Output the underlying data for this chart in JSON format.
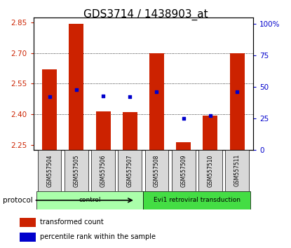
{
  "title": "GDS3714 / 1438903_at",
  "samples": [
    "GSM557504",
    "GSM557505",
    "GSM557506",
    "GSM557507",
    "GSM557508",
    "GSM557509",
    "GSM557510",
    "GSM557511"
  ],
  "transformed_count": [
    2.62,
    2.845,
    2.415,
    2.41,
    2.7,
    2.265,
    2.395,
    2.7
  ],
  "percentile_rank": [
    42,
    48,
    43,
    42,
    46,
    25,
    27,
    46
  ],
  "bar_bottom": 2.225,
  "ylim": [
    2.225,
    2.875
  ],
  "yticks": [
    2.25,
    2.4,
    2.55,
    2.7,
    2.85
  ],
  "right_yticks": [
    0,
    25,
    50,
    75,
    100
  ],
  "right_ylim": [
    0,
    105
  ],
  "bar_color": "#cc2200",
  "percentile_color": "#0000cc",
  "protocol_groups": [
    {
      "label": "control",
      "start": 0,
      "end": 4,
      "color": "#aaffaa"
    },
    {
      "label": "Evi1 retroviral transduction",
      "start": 4,
      "end": 8,
      "color": "#44dd44"
    }
  ],
  "protocol_label": "protocol",
  "legend_items": [
    {
      "label": "transformed count",
      "color": "#cc2200"
    },
    {
      "label": "percentile rank within the sample",
      "color": "#0000cc"
    }
  ],
  "left_tick_color": "#cc2200",
  "right_tick_color": "#0000cc",
  "title_fontsize": 11,
  "bar_width": 0.55
}
